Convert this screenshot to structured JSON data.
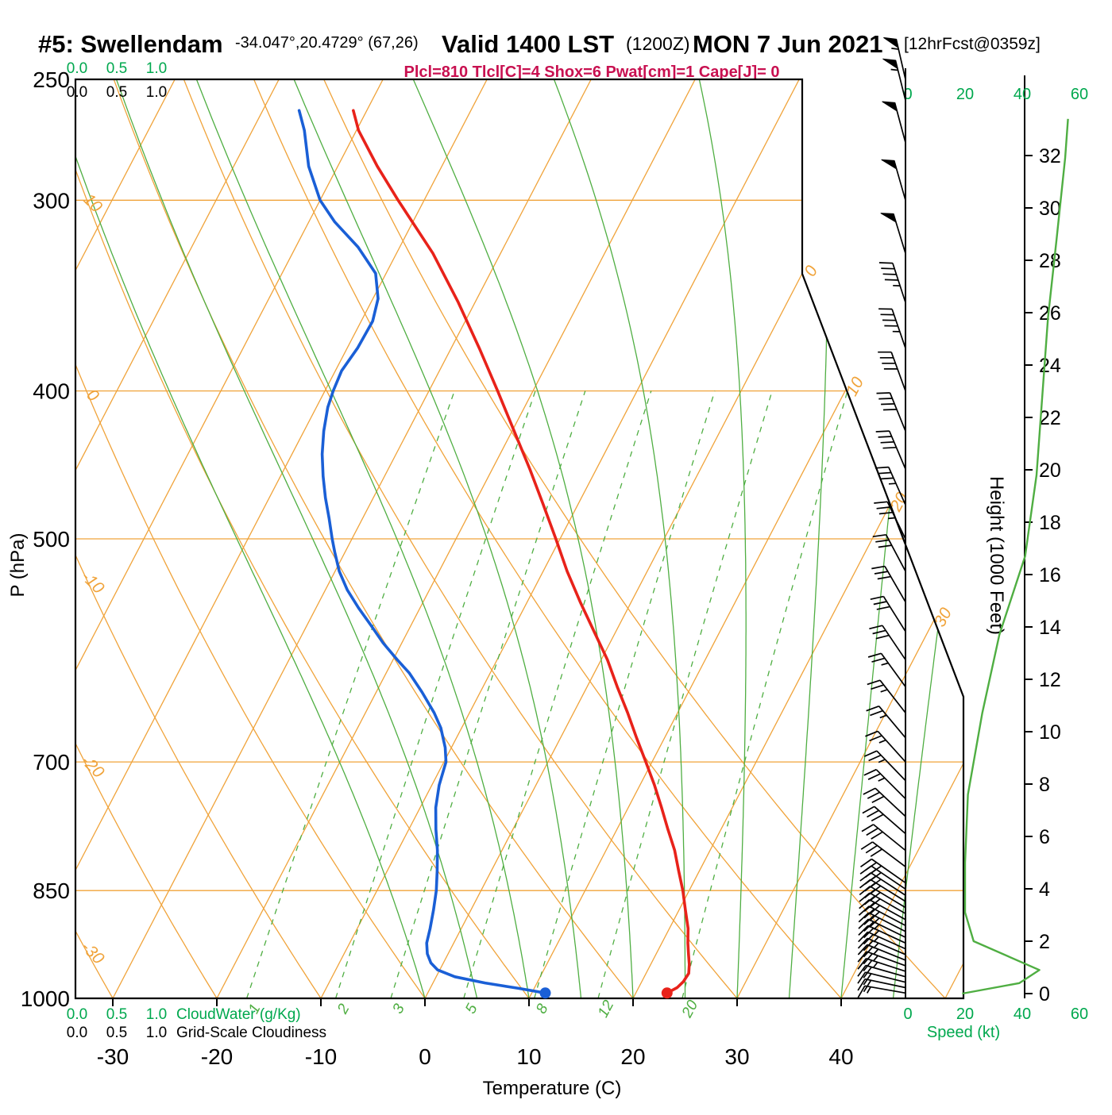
{
  "header": {
    "station_id": "#5: Swellendam",
    "coords": "-34.047°,20.4729° (67,26)",
    "valid_time": "Valid 1400 LST",
    "valid_z": "(1200Z)",
    "valid_date": "MON 7 Jun 2021",
    "fcst_tag": "[12hrFcst@0359z]",
    "indices": "Plcl=810 Tlcl[C]=4 Shox=6 Pwat[cm]=1 Cape[J]= 0"
  },
  "axes": {
    "pressure_title": "P (hPa)",
    "temp_title": "Temperature (C)",
    "height_title": "Height (1000 Feet)",
    "speed_title": "Speed (kt)",
    "cloudwater_title": "CloudWater (g/Kg)",
    "cloudiness_title": "Grid-Scale Cloudiness",
    "cloud_scale_ticks": [
      "0.0",
      "0.5",
      "1.0"
    ],
    "pressure_ticks": [
      250,
      300,
      400,
      500,
      700,
      850,
      1000
    ],
    "temp_ticks": [
      -30,
      -20,
      -10,
      0,
      10,
      20,
      30,
      40
    ],
    "height_ticks": [
      0,
      2,
      4,
      6,
      8,
      10,
      12,
      14,
      16,
      18,
      20,
      22,
      24,
      26,
      28,
      30,
      32
    ],
    "speed_ticks": [
      0,
      20,
      40,
      60
    ]
  },
  "chart_data": {
    "type": "skewt-logp",
    "pressure_range_hpa": [
      1000,
      250
    ],
    "isobars_hpa": [
      300,
      400,
      500,
      700,
      850
    ],
    "isotherms_c": [
      -80,
      -70,
      -60,
      -50,
      -40,
      -30,
      -20,
      -10,
      0,
      10,
      20,
      30,
      40,
      50
    ],
    "dry_adiabats_c": [
      -30,
      -20,
      -10,
      0,
      10,
      20,
      30,
      40,
      50
    ],
    "dry_adiabat_labels_c": [
      10,
      0,
      -10,
      -20,
      -30
    ],
    "isotherm_labels_c": [
      0,
      10,
      20,
      30
    ],
    "moist_adiabats_c": [
      0,
      5,
      10,
      15,
      20,
      25,
      30,
      35,
      40,
      45
    ],
    "mixing_ratio_g_kg": [
      1,
      2,
      3,
      5,
      8,
      12,
      20
    ],
    "temperature_profile_p_t": [
      [
        992,
        23.0
      ],
      [
        984,
        23.7
      ],
      [
        975,
        24.0
      ],
      [
        963,
        24.1
      ],
      [
        950,
        23.7
      ],
      [
        935,
        23.1
      ],
      [
        920,
        22.5
      ],
      [
        900,
        21.8
      ],
      [
        875,
        20.6
      ],
      [
        850,
        19.4
      ],
      [
        825,
        18.0
      ],
      [
        800,
        16.6
      ],
      [
        775,
        14.9
      ],
      [
        750,
        13.2
      ],
      [
        725,
        11.4
      ],
      [
        700,
        9.4
      ],
      [
        675,
        7.3
      ],
      [
        650,
        5.2
      ],
      [
        625,
        2.9
      ],
      [
        600,
        0.6
      ],
      [
        575,
        -2.1
      ],
      [
        550,
        -4.9
      ],
      [
        525,
        -7.7
      ],
      [
        500,
        -10.4
      ],
      [
        475,
        -13.3
      ],
      [
        450,
        -16.4
      ],
      [
        425,
        -19.8
      ],
      [
        400,
        -23.4
      ],
      [
        375,
        -27.3
      ],
      [
        350,
        -31.6
      ],
      [
        325,
        -36.5
      ],
      [
        300,
        -42.5
      ],
      [
        285,
        -46.2
      ],
      [
        270,
        -49.8
      ],
      [
        262,
        -51.3
      ]
    ],
    "dewpoint_profile_p_t": [
      [
        992,
        11.3
      ],
      [
        985,
        8.5
      ],
      [
        977,
        5.0
      ],
      [
        968,
        1.8
      ],
      [
        958,
        -0.2
      ],
      [
        948,
        -1.2
      ],
      [
        935,
        -2.0
      ],
      [
        920,
        -2.6
      ],
      [
        900,
        -3.0
      ],
      [
        875,
        -3.6
      ],
      [
        850,
        -4.3
      ],
      [
        825,
        -5.2
      ],
      [
        800,
        -6.2
      ],
      [
        775,
        -7.4
      ],
      [
        750,
        -8.5
      ],
      [
        725,
        -9.3
      ],
      [
        700,
        -9.8
      ],
      [
        685,
        -10.6
      ],
      [
        665,
        -12.0
      ],
      [
        650,
        -13.4
      ],
      [
        630,
        -15.6
      ],
      [
        612,
        -17.8
      ],
      [
        600,
        -19.6
      ],
      [
        585,
        -21.8
      ],
      [
        570,
        -23.8
      ],
      [
        555,
        -25.9
      ],
      [
        540,
        -27.9
      ],
      [
        525,
        -29.6
      ],
      [
        510,
        -31.0
      ],
      [
        500,
        -31.9
      ],
      [
        485,
        -33.2
      ],
      [
        470,
        -34.6
      ],
      [
        455,
        -35.9
      ],
      [
        440,
        -37.1
      ],
      [
        425,
        -38.1
      ],
      [
        410,
        -38.9
      ],
      [
        400,
        -39.2
      ],
      [
        388,
        -39.4
      ],
      [
        375,
        -39.0
      ],
      [
        360,
        -38.9
      ],
      [
        348,
        -39.5
      ],
      [
        335,
        -41.0
      ],
      [
        322,
        -44.0
      ],
      [
        310,
        -47.5
      ],
      [
        300,
        -50.0
      ],
      [
        285,
        -52.8
      ],
      [
        270,
        -55.0
      ],
      [
        262,
        -56.5
      ]
    ],
    "winds_p_dir_kt": [
      [
        992,
        280,
        15
      ],
      [
        984,
        282,
        18
      ],
      [
        976,
        284,
        20
      ],
      [
        968,
        286,
        22
      ],
      [
        960,
        288,
        24
      ],
      [
        952,
        290,
        25
      ],
      [
        944,
        292,
        25
      ],
      [
        936,
        293,
        26
      ],
      [
        928,
        294,
        26
      ],
      [
        920,
        295,
        27
      ],
      [
        912,
        296,
        27
      ],
      [
        904,
        297,
        28
      ],
      [
        896,
        298,
        28
      ],
      [
        888,
        299,
        28
      ],
      [
        880,
        300,
        29
      ],
      [
        872,
        301,
        29
      ],
      [
        864,
        302,
        30
      ],
      [
        856,
        303,
        30
      ],
      [
        848,
        304,
        30
      ],
      [
        840,
        305,
        30
      ],
      [
        820,
        307,
        30
      ],
      [
        800,
        309,
        29
      ],
      [
        780,
        311,
        28
      ],
      [
        760,
        313,
        28
      ],
      [
        740,
        315,
        27
      ],
      [
        720,
        316,
        26
      ],
      [
        700,
        318,
        26
      ],
      [
        675,
        320,
        25
      ],
      [
        650,
        322,
        26
      ],
      [
        625,
        324,
        27
      ],
      [
        600,
        326,
        28
      ],
      [
        575,
        328,
        29
      ],
      [
        550,
        330,
        30
      ],
      [
        525,
        332,
        32
      ],
      [
        500,
        334,
        34
      ],
      [
        475,
        336,
        36
      ],
      [
        450,
        337,
        38
      ],
      [
        425,
        338,
        40
      ],
      [
        400,
        340,
        42
      ],
      [
        375,
        341,
        44
      ],
      [
        350,
        342,
        46
      ],
      [
        325,
        343,
        48
      ],
      [
        300,
        344,
        50
      ],
      [
        275,
        345,
        52
      ],
      [
        258,
        346,
        54
      ],
      [
        250,
        347,
        55
      ]
    ],
    "wind_speed_profile_kft_kt": [
      [
        0,
        19
      ],
      [
        0.4,
        39
      ],
      [
        0.9,
        46
      ],
      [
        2.0,
        23
      ],
      [
        3.1,
        20
      ],
      [
        5,
        20
      ],
      [
        7.6,
        21
      ],
      [
        10.7,
        26
      ],
      [
        13.7,
        32
      ],
      [
        16.7,
        41
      ],
      [
        19.8,
        45
      ],
      [
        22.8,
        47
      ],
      [
        25.8,
        49
      ],
      [
        28.8,
        52
      ],
      [
        31.9,
        55
      ],
      [
        33.4,
        56
      ]
    ],
    "colors": {
      "grid_orange": "#f0a33a",
      "line_green": "#4fae42",
      "text_green": "#00a84e",
      "temperature_red": "#e8221a",
      "dewpoint_blue": "#1a5fd6",
      "indices_crimson": "#c81050",
      "barb_black": "#000000"
    }
  }
}
